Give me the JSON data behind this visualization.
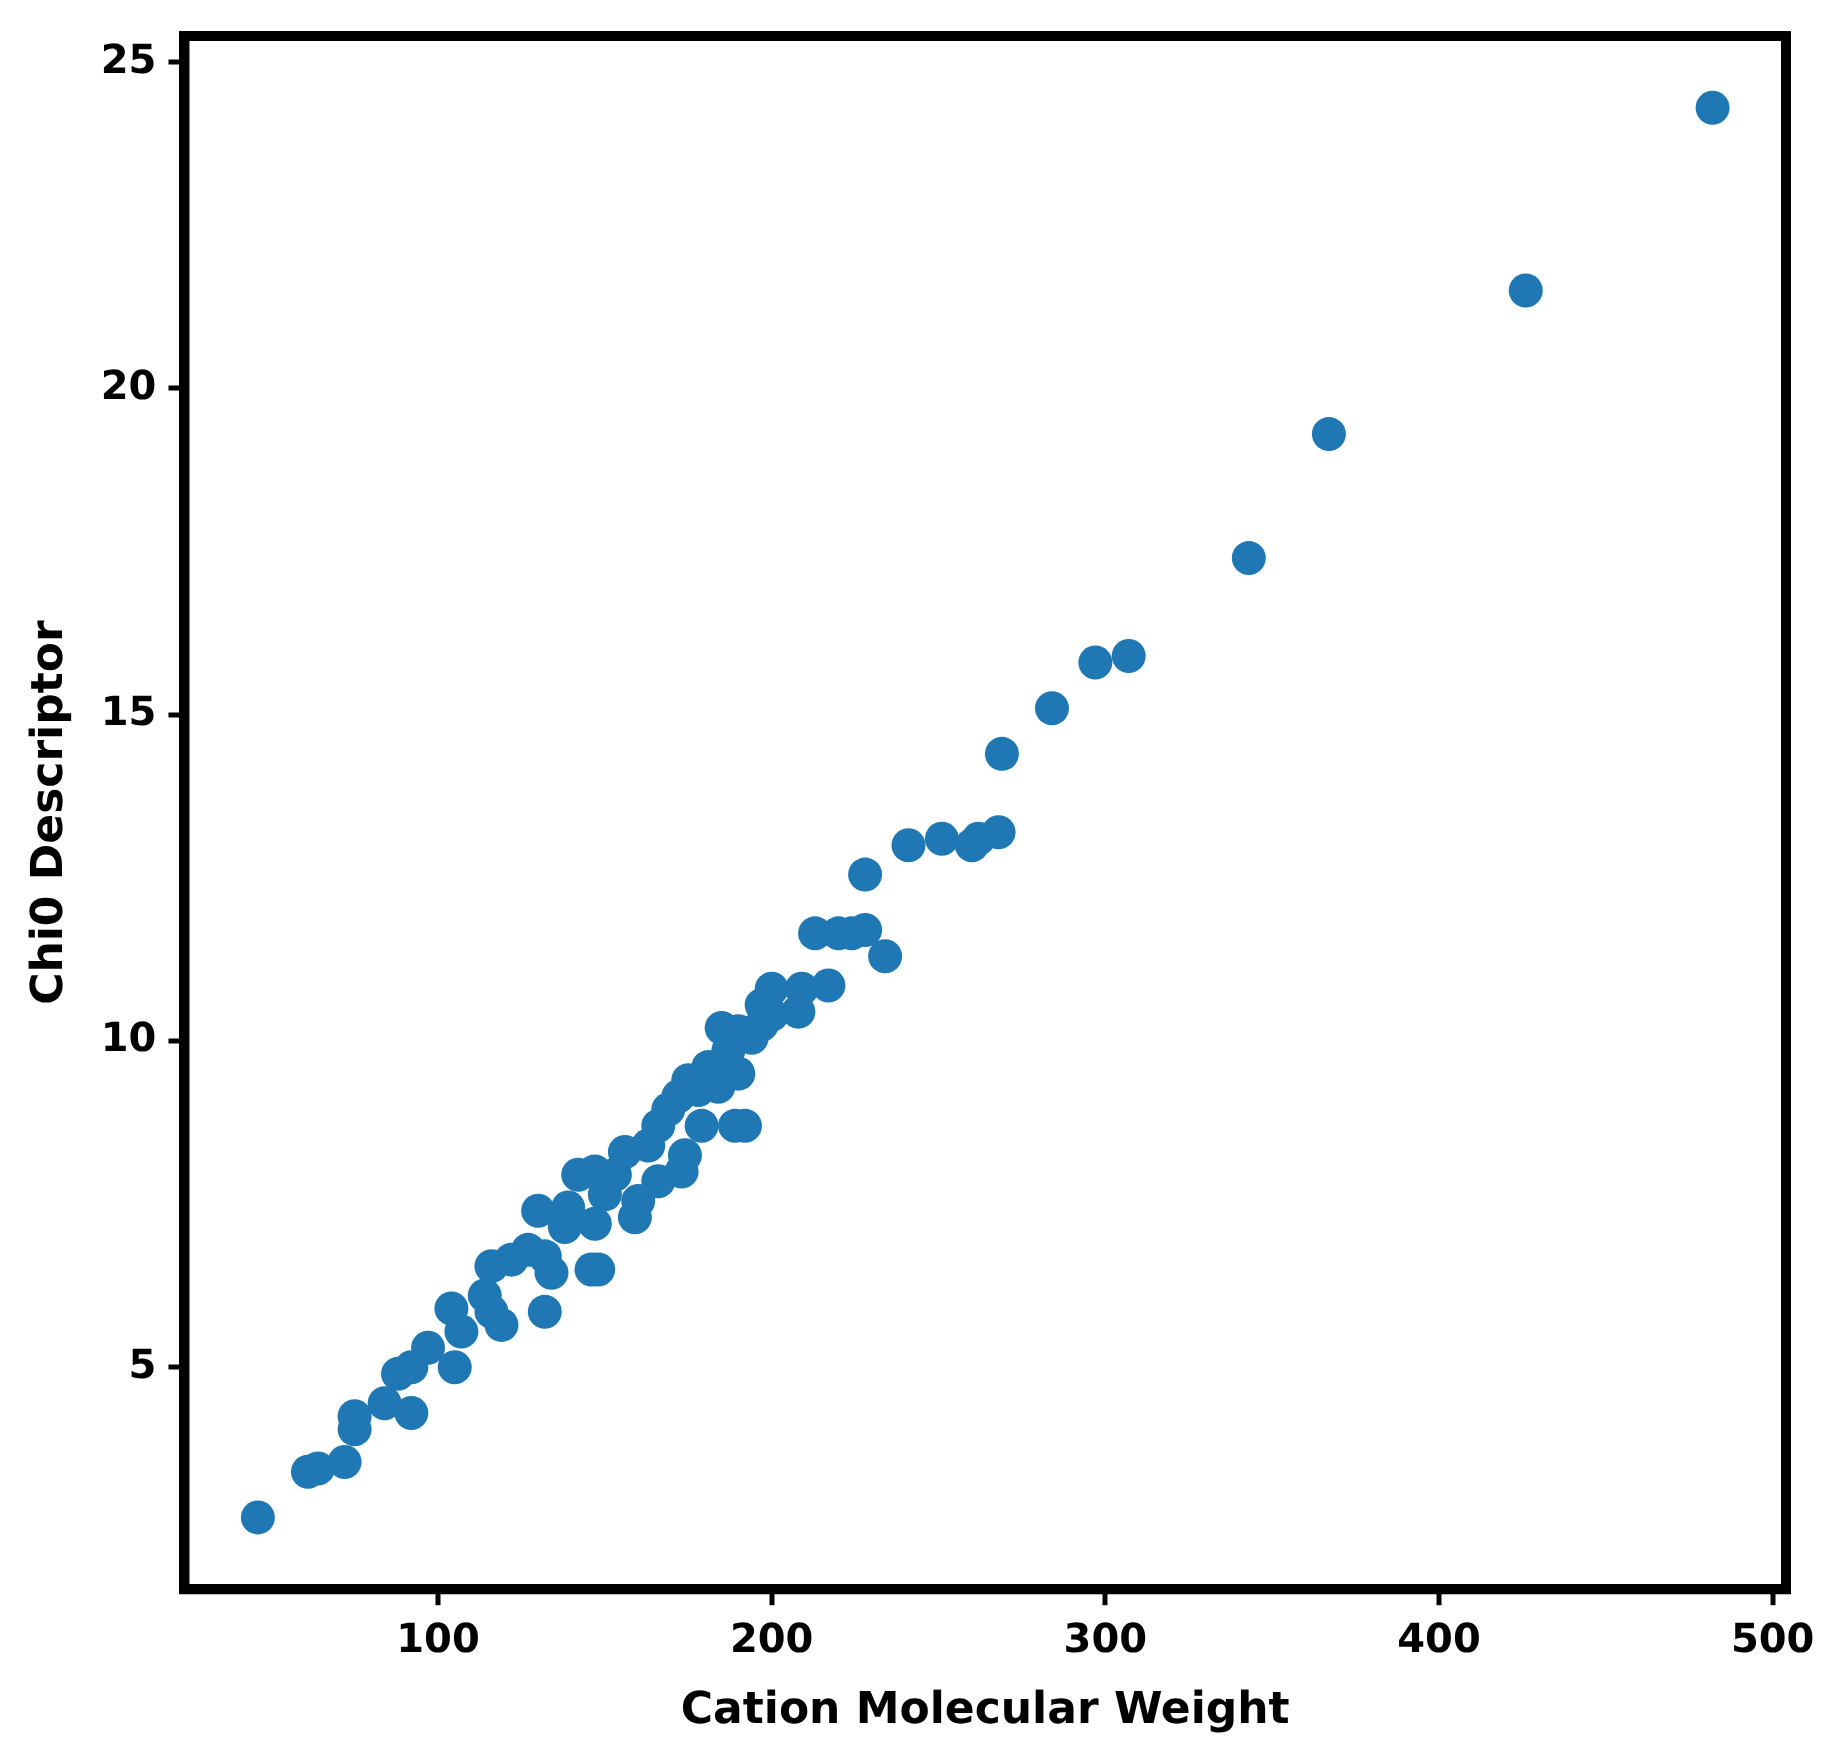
{
  "chart_data": {
    "type": "scatter",
    "xlabel": "Cation Molecular Weight",
    "ylabel": "Chi0 Descriptor",
    "xlim": [
      24,
      504
    ],
    "ylim": [
      1.6,
      25.4
    ],
    "xticks": [
      100,
      200,
      300,
      400,
      500
    ],
    "yticks": [
      5,
      10,
      15,
      20,
      25
    ],
    "grid": false,
    "legend": false,
    "marker": "circle",
    "series": [
      {
        "color": "#1f77b4",
        "x": [
          46,
          61,
          64,
          72,
          75,
          75,
          84,
          92,
          88,
          92,
          97,
          105,
          104,
          107,
          114,
          116,
          119,
          116,
          122,
          127,
          132,
          132,
          134,
          130,
          138,
          139,
          146,
          148,
          142,
          147,
          150,
          147,
          153,
          156,
          159,
          160,
          163,
          166,
          173,
          174,
          166,
          169,
          172,
          175,
          178,
          179,
          184,
          181,
          187,
          185,
          189,
          192,
          190,
          190,
          194,
          197,
          197,
          200,
          200,
          208,
          213,
          220,
          209,
          217,
          224,
          228,
          234,
          228,
          241,
          251,
          260,
          262,
          268,
          269,
          284,
          297,
          307,
          343,
          367,
          426,
          482
        ],
        "values": [
          2.7,
          3.4,
          3.45,
          3.55,
          4.25,
          4.05,
          4.45,
          4.3,
          4.9,
          5.0,
          5.3,
          5.0,
          5.9,
          5.55,
          6.1,
          5.85,
          5.65,
          6.55,
          6.65,
          6.8,
          5.85,
          6.7,
          6.45,
          7.4,
          7.15,
          7.45,
          6.5,
          6.5,
          7.95,
          7.2,
          7.65,
          8.0,
          7.95,
          8.3,
          7.3,
          7.55,
          8.4,
          8.7,
          8.0,
          8.25,
          7.85,
          8.95,
          9.15,
          9.4,
          9.25,
          8.7,
          9.3,
          9.6,
          9.85,
          10.2,
          8.7,
          8.7,
          9.5,
          10.15,
          10.05,
          10.25,
          10.55,
          10.8,
          10.4,
          10.45,
          11.65,
          11.65,
          10.8,
          10.85,
          11.65,
          11.7,
          11.3,
          12.55,
          13.0,
          13.1,
          13.0,
          13.1,
          13.2,
          14.4,
          15.1,
          15.8,
          15.9,
          17.4,
          19.3,
          21.5,
          24.3
        ]
      }
    ]
  }
}
